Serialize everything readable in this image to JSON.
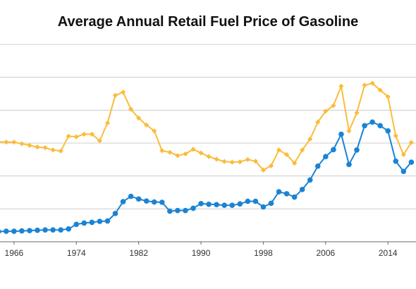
{
  "chart_data": {
    "type": "line",
    "title": "Average Annual Retail Fuel Price of Gasoline",
    "xlabel": "",
    "ylabel": "",
    "x": [
      1964,
      1965,
      1966,
      1967,
      1968,
      1969,
      1970,
      1971,
      1972,
      1973,
      1974,
      1975,
      1976,
      1977,
      1978,
      1979,
      1980,
      1981,
      1982,
      1983,
      1984,
      1985,
      1986,
      1987,
      1988,
      1989,
      1990,
      1991,
      1992,
      1993,
      1994,
      1995,
      1996,
      1997,
      1998,
      1999,
      2000,
      2001,
      2002,
      2003,
      2004,
      2005,
      2006,
      2007,
      2008,
      2009,
      2010,
      2011,
      2012,
      2013,
      2014,
      2015,
      2016,
      2017
    ],
    "x_ticks": [
      "1966",
      "1974",
      "1982",
      "1990",
      "1998",
      "2006",
      "2014"
    ],
    "x_tick_values": [
      1966,
      1974,
      1982,
      1990,
      1998,
      2006,
      2014
    ],
    "xlim": [
      1964.2,
      2017.6
    ],
    "ylim": [
      0,
      6
    ],
    "y_gridlines": [
      0,
      1,
      2,
      3,
      4,
      5
    ],
    "grid": true,
    "legend": "none",
    "series": [
      {
        "color": "#FBBC3A",
        "marker": "diamond",
        "values": [
          3.04,
          3.03,
          3.03,
          2.98,
          2.93,
          2.88,
          2.86,
          2.79,
          2.76,
          3.21,
          3.19,
          3.27,
          3.27,
          3.07,
          3.61,
          4.45,
          4.55,
          4.03,
          3.76,
          3.55,
          3.37,
          2.77,
          2.72,
          2.62,
          2.67,
          2.81,
          2.7,
          2.59,
          2.51,
          2.44,
          2.42,
          2.43,
          2.5,
          2.45,
          2.18,
          2.31,
          2.79,
          2.65,
          2.39,
          2.79,
          3.12,
          3.64,
          3.97,
          4.14,
          4.73,
          3.37,
          3.92,
          4.76,
          4.82,
          4.61,
          4.41,
          3.22,
          2.65,
          3.02
        ]
      },
      {
        "color": "#1A83D4",
        "marker": "circle",
        "values": [
          0.31,
          0.32,
          0.32,
          0.33,
          0.34,
          0.35,
          0.36,
          0.36,
          0.36,
          0.39,
          0.53,
          0.57,
          0.59,
          0.62,
          0.63,
          0.86,
          1.22,
          1.38,
          1.3,
          1.24,
          1.21,
          1.2,
          0.93,
          0.95,
          0.95,
          1.02,
          1.16,
          1.14,
          1.13,
          1.11,
          1.11,
          1.15,
          1.23,
          1.23,
          1.06,
          1.17,
          1.52,
          1.46,
          1.36,
          1.59,
          1.88,
          2.3,
          2.59,
          2.8,
          3.27,
          2.35,
          2.79,
          3.53,
          3.64,
          3.53,
          3.37,
          2.45,
          2.14,
          2.42
        ]
      }
    ]
  }
}
